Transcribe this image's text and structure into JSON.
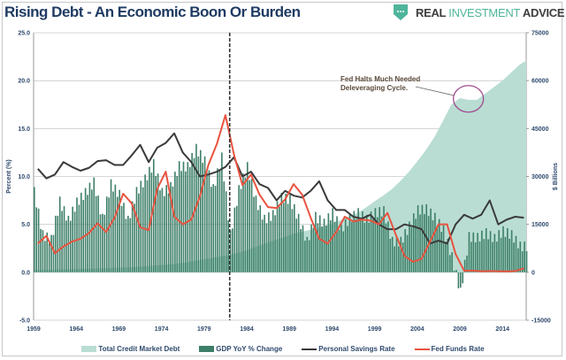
{
  "title": "Rising Debt - An Economic Boon Or Burden",
  "logo": {
    "part1": "REAL",
    "part2": "INVESTMENT",
    "part3": "ADVICE",
    "icon": "shield-chat-icon"
  },
  "colors": {
    "debt": "#b9ddd3",
    "gdp": "#3d7f68",
    "savings": "#3a3a3a",
    "fed": "#e8533f",
    "title": "#1f3b63",
    "logo_accent": "#4fb59b",
    "circle": "#a04a8f"
  },
  "chart_data": {
    "type": "bar+line+area",
    "title": "Rising Debt - An Economic Boon Or Burden",
    "ylabel": "Percent (%)",
    "y2label": "$ Billions",
    "ylim": [
      -5,
      25
    ],
    "y2lim": [
      -15000,
      75000
    ],
    "yticks": [
      "25.0",
      "20.0",
      "15.0",
      "10.0",
      "5.0",
      "0.0",
      "-5.0"
    ],
    "y2ticks": [
      "75000",
      "60000",
      "45000",
      "30000",
      "15000",
      "0",
      "-15000"
    ],
    "xticks": [
      "1959",
      "1964",
      "1969",
      "1974",
      "1979",
      "1984",
      "1989",
      "1994",
      "1999",
      "2004",
      "2009",
      "2014"
    ],
    "grid": true,
    "legend_position": "bottom",
    "vline_year": 1982,
    "annotation": {
      "line1": "Fed Halts Much Needed",
      "line2": "Deleveraging Cycle.",
      "target_year": 2010
    },
    "x": [
      1959,
      1960,
      1961,
      1962,
      1963,
      1964,
      1965,
      1966,
      1967,
      1968,
      1969,
      1970,
      1971,
      1972,
      1973,
      1974,
      1975,
      1976,
      1977,
      1978,
      1979,
      1980,
      1981,
      1982,
      1983,
      1984,
      1985,
      1986,
      1987,
      1988,
      1989,
      1990,
      1991,
      1992,
      1993,
      1994,
      1995,
      1996,
      1997,
      1998,
      1999,
      2000,
      2001,
      2002,
      2003,
      2004,
      2005,
      2006,
      2007,
      2008,
      2009,
      2010,
      2011,
      2012,
      2013,
      2014,
      2015,
      2016
    ],
    "series": [
      {
        "name": "Total Credit Market Debt",
        "type": "area",
        "axis": "right",
        "values": [
          700,
          750,
          800,
          860,
          930,
          1000,
          1080,
          1160,
          1240,
          1340,
          1440,
          1540,
          1680,
          1870,
          2080,
          2280,
          2500,
          2780,
          3150,
          3600,
          4100,
          4550,
          5000,
          5450,
          6050,
          6900,
          7900,
          8900,
          9800,
          10700,
          11600,
          12400,
          13000,
          13600,
          14400,
          15300,
          16300,
          17400,
          18600,
          20300,
          22200,
          24000,
          26000,
          28500,
          31400,
          34700,
          38200,
          42300,
          47300,
          52500,
          54500,
          54000,
          54000,
          56000,
          58000,
          60000,
          62500,
          65000
        ]
      },
      {
        "name": "GDP YoY % Change",
        "type": "bar",
        "axis": "left",
        "values": [
          8.5,
          4,
          3.5,
          7.5,
          5.5,
          7.4,
          8.4,
          9.5,
          5.7,
          9.3,
          8.2,
          5.5,
          8.5,
          9.8,
          11.4,
          8.4,
          9,
          11.2,
          11.1,
          13,
          11.7,
          8.8,
          12.1,
          4,
          8.7,
          11.1,
          7.6,
          5.6,
          6.1,
          7.9,
          7.7,
          5.7,
          3.3,
          5.9,
          5.2,
          6.3,
          4.6,
          5.7,
          6.3,
          5.6,
          6.3,
          6.5,
          3.3,
          3.3,
          4.9,
          6.6,
          6.7,
          5.8,
          4.5,
          1.7,
          -2,
          3.8,
          3.7,
          4.2,
          3.6,
          4.4,
          4,
          2.8
        ]
      },
      {
        "name": "Personal Savings Rate",
        "type": "line",
        "axis": "left",
        "values": [
          10.8,
          9.8,
          10.2,
          11.5,
          11,
          10.6,
          10.9,
          11.6,
          11.7,
          11.2,
          11.2,
          12.2,
          13.3,
          11.5,
          13,
          13.5,
          14.5,
          12.5,
          11.5,
          10,
          10.2,
          10.5,
          11,
          12,
          10,
          10.5,
          9.2,
          8.8,
          7.5,
          8.5,
          8,
          7.8,
          8.5,
          9.5,
          7.5,
          6.5,
          6.5,
          5.8,
          5.6,
          6,
          5,
          4.5,
          4.5,
          5,
          4.8,
          4.5,
          3,
          3.3,
          3,
          5,
          6,
          5.6,
          6,
          7.5,
          5,
          5.5,
          5.8,
          5.7
        ]
      },
      {
        "name": "Fed Funds Rate",
        "type": "line",
        "axis": "left",
        "values": [
          3,
          3.8,
          2,
          2.7,
          3.2,
          3.5,
          4.1,
          5.1,
          4.2,
          5.7,
          8.2,
          7.2,
          4.7,
          4.4,
          8.7,
          10.5,
          5.8,
          5,
          5.5,
          7.9,
          11.2,
          13.4,
          16.4,
          12.3,
          9.1,
          10.2,
          8.1,
          6.8,
          6.7,
          7.6,
          9.2,
          8.1,
          5.7,
          3.5,
          3,
          4.2,
          5.8,
          5.3,
          5.5,
          5.4,
          5,
          6.2,
          3.9,
          1.7,
          1.1,
          1.4,
          3.2,
          5,
          5,
          1.9,
          0.16,
          0.18,
          0.1,
          0.14,
          0.11,
          0.09,
          0.13,
          0.4
        ]
      }
    ]
  }
}
